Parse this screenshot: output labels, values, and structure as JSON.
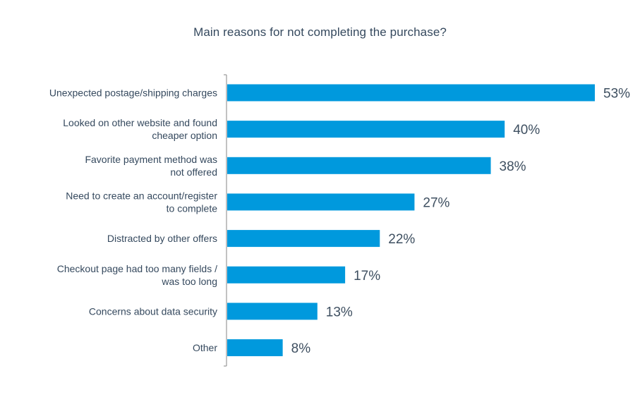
{
  "chart_data": {
    "type": "bar",
    "orientation": "horizontal",
    "title": "Main reasons for not completing the purchase?",
    "categories": [
      [
        "Unexpected postage/shipping charges"
      ],
      [
        "Looked on other website and found",
        "cheaper option"
      ],
      [
        "Favorite payment method was",
        "not offered"
      ],
      [
        "Need to create an account/register",
        "to complete"
      ],
      [
        "Distracted by other offers"
      ],
      [
        "Checkout page had too many fields /",
        "was too long"
      ],
      [
        "Concerns about data security"
      ],
      [
        "Other"
      ]
    ],
    "values": [
      53,
      40,
      38,
      27,
      22,
      17,
      13,
      8
    ],
    "value_labels": [
      "53%",
      "40%",
      "38%",
      "27%",
      "22%",
      "17%",
      "13%",
      "8%"
    ],
    "unit": "%",
    "xlim": [
      0,
      53
    ],
    "bar_color": "#0099dd",
    "axis_color": "#9a9a9a",
    "grid": false,
    "legend": "none"
  }
}
